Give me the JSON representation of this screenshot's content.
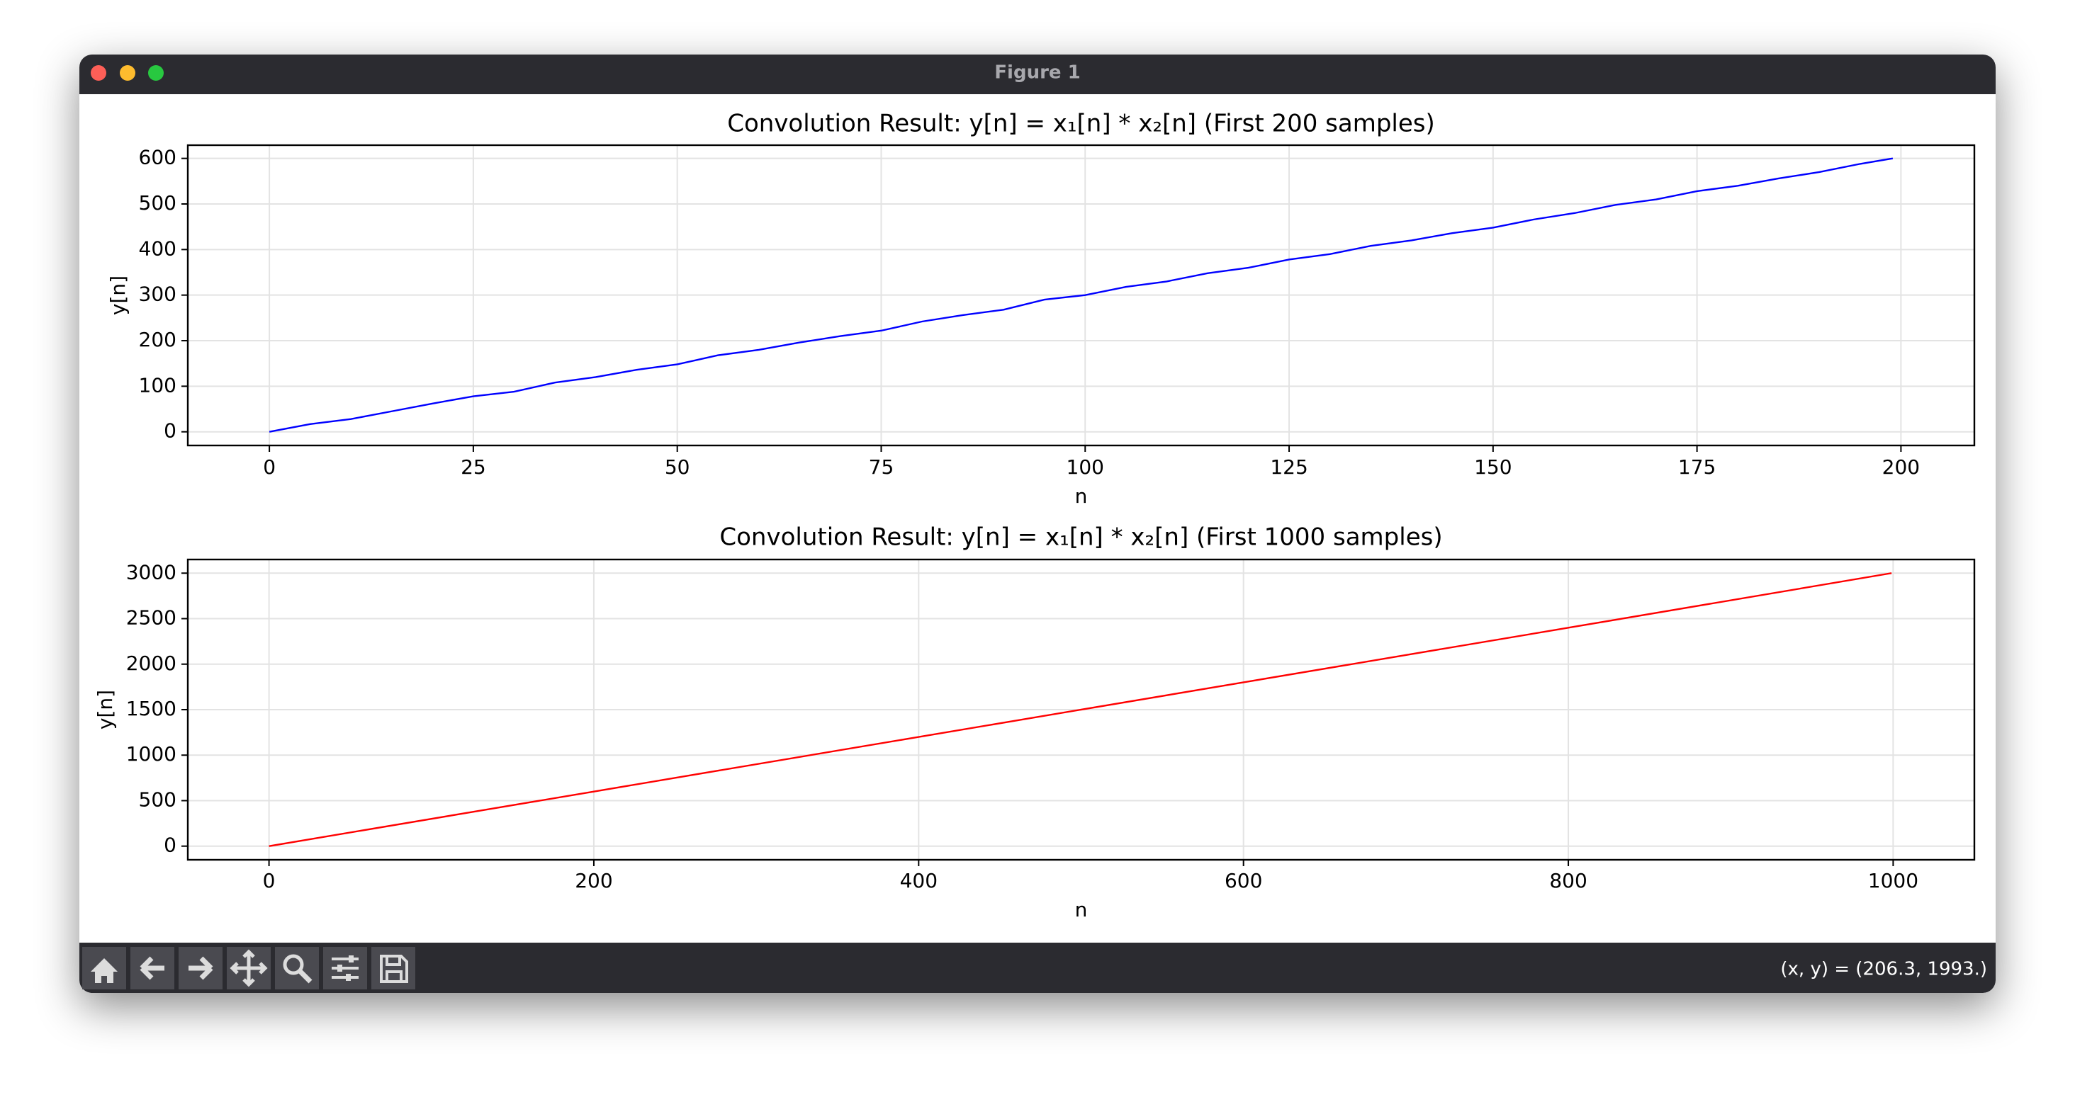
{
  "window": {
    "title": "Figure 1",
    "status": "(x, y) = (206.3, 1993.)"
  },
  "chart_data": [
    {
      "type": "line",
      "title": "Convolution Result: y[n] = x₁[n] * x₂[n] (First 200 samples)",
      "xlabel": "n",
      "ylabel": "y[n]",
      "color": "#0000ff",
      "grid": true,
      "x": [
        0,
        5,
        10,
        15,
        20,
        25,
        30,
        35,
        40,
        45,
        50,
        55,
        60,
        65,
        70,
        75,
        80,
        85,
        90,
        95,
        100,
        105,
        110,
        115,
        120,
        125,
        130,
        135,
        140,
        145,
        150,
        155,
        160,
        165,
        170,
        175,
        180,
        185,
        190,
        195,
        199
      ],
      "values": [
        0,
        17,
        28,
        45,
        62,
        78,
        88,
        108,
        120,
        136,
        148,
        168,
        180,
        196,
        210,
        222,
        242,
        256,
        268,
        290,
        300,
        318,
        330,
        348,
        360,
        378,
        390,
        408,
        420,
        436,
        448,
        466,
        480,
        498,
        510,
        528,
        540,
        556,
        570,
        588,
        600
      ],
      "xlim": [
        -10,
        209
      ],
      "ylim": [
        -30,
        629
      ],
      "xticks": [
        0,
        25,
        50,
        75,
        100,
        125,
        150,
        175,
        200
      ],
      "yticks": [
        0,
        100,
        200,
        300,
        400,
        500,
        600
      ]
    },
    {
      "type": "line",
      "title": "Convolution Result: y[n] = x₁[n] * x₂[n] (First 1000 samples)",
      "xlabel": "n",
      "ylabel": "y[n]",
      "color": "#ff0000",
      "grid": true,
      "x": [
        0,
        200,
        400,
        600,
        800,
        999
      ],
      "values": [
        0,
        600,
        1200,
        1800,
        2400,
        3000
      ],
      "xlim": [
        -50,
        1050
      ],
      "ylim": [
        -150,
        3150
      ],
      "xticks": [
        0,
        200,
        400,
        600,
        800,
        1000
      ],
      "yticks": [
        0,
        500,
        1000,
        1500,
        2000,
        2500,
        3000
      ]
    }
  ]
}
